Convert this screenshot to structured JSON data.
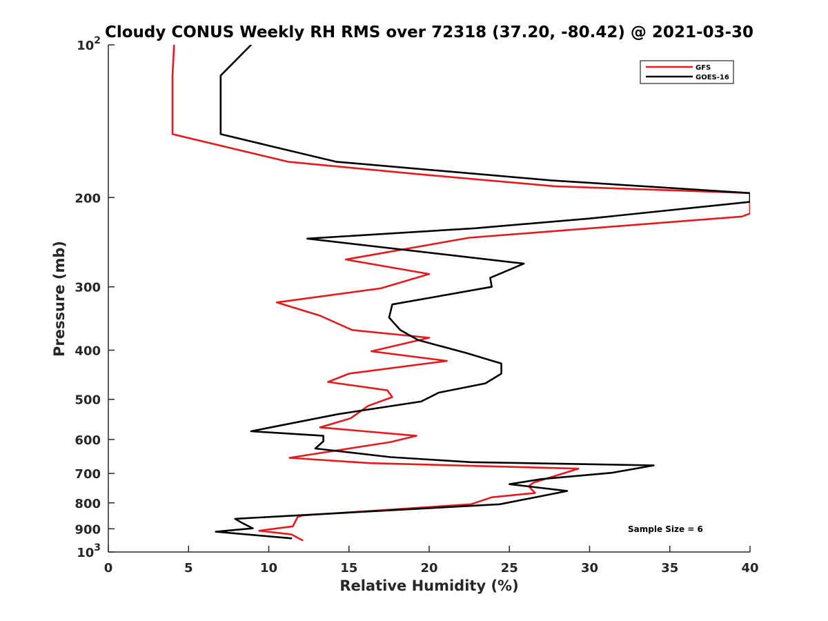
{
  "chart_data": {
    "type": "line",
    "title": "Cloudy CONUS Weekly RH RMS over 72318 (37.20, -80.42) @ 2021-03-30",
    "xlabel": "Relative Humidity (%)",
    "ylabel": "Pressure (mb)",
    "xlim": [
      0,
      40
    ],
    "ylim": [
      100,
      1000
    ],
    "yscale": "log",
    "yreversed": true,
    "grid": false,
    "legend_position": "top-right",
    "xticks": [
      0,
      5,
      10,
      15,
      20,
      25,
      30,
      35,
      40
    ],
    "xtick_labels": [
      "0",
      "5",
      "10",
      "15",
      "20",
      "25",
      "30",
      "35",
      "40"
    ],
    "yticks": [
      100,
      200,
      300,
      400,
      500,
      600,
      700,
      800,
      900,
      1000
    ],
    "ytick_labels": [
      {
        "base": "10",
        "exp": "2"
      },
      {
        "base": "200",
        "exp": ""
      },
      {
        "base": "300",
        "exp": ""
      },
      {
        "base": "400",
        "exp": ""
      },
      {
        "base": "500",
        "exp": ""
      },
      {
        "base": "600",
        "exp": ""
      },
      {
        "base": "700",
        "exp": ""
      },
      {
        "base": "800",
        "exp": ""
      },
      {
        "base": "900",
        "exp": ""
      },
      {
        "base": "10",
        "exp": "3"
      }
    ],
    "annotation": "Sample Size = 6",
    "series": [
      {
        "name": "GFS",
        "color": "#e41a1c",
        "points": [
          [
            4.1,
            100
          ],
          [
            4.0,
            115
          ],
          [
            4.0,
            125
          ],
          [
            4.0,
            150
          ],
          [
            11.2,
            170
          ],
          [
            19.4,
            180
          ],
          [
            27.8,
            190
          ],
          [
            40.0,
            196
          ],
          [
            40.0,
            215
          ],
          [
            39.5,
            218
          ],
          [
            22.5,
            240
          ],
          [
            14.8,
            265
          ],
          [
            20.0,
            283
          ],
          [
            17.0,
            302
          ],
          [
            10.5,
            322
          ],
          [
            13.2,
            342
          ],
          [
            15.2,
            365
          ],
          [
            20.0,
            378
          ],
          [
            16.4,
            402
          ],
          [
            21.1,
            420
          ],
          [
            15.0,
            445
          ],
          [
            13.7,
            462
          ],
          [
            17.4,
            480
          ],
          [
            17.7,
            495
          ],
          [
            16.2,
            515
          ],
          [
            15.1,
            545
          ],
          [
            13.2,
            568
          ],
          [
            19.2,
            590
          ],
          [
            17.6,
            607
          ],
          [
            11.3,
            652
          ],
          [
            16.3,
            668
          ],
          [
            29.3,
            685
          ],
          [
            26.5,
            730
          ],
          [
            26.2,
            742
          ],
          [
            26.6,
            765
          ],
          [
            23.9,
            780
          ],
          [
            22.6,
            805
          ],
          [
            12.1,
            847
          ],
          [
            11.8,
            853
          ],
          [
            11.5,
            890
          ],
          [
            9.4,
            908
          ],
          [
            11.4,
            923
          ],
          [
            12.1,
            948
          ]
        ]
      },
      {
        "name": "GOES-16",
        "color": "#000000",
        "points": [
          [
            8.9,
            100
          ],
          [
            7.0,
            115
          ],
          [
            7.0,
            125
          ],
          [
            7.0,
            150
          ],
          [
            14.2,
            170
          ],
          [
            27.6,
            185
          ],
          [
            40.0,
            196
          ],
          [
            40.0,
            204
          ],
          [
            30.0,
            220
          ],
          [
            22.8,
            230
          ],
          [
            12.4,
            241
          ],
          [
            25.9,
            270
          ],
          [
            23.8,
            288
          ],
          [
            23.9,
            300
          ],
          [
            17.7,
            325
          ],
          [
            17.5,
            345
          ],
          [
            18.2,
            365
          ],
          [
            19.3,
            382
          ],
          [
            22.3,
            405
          ],
          [
            24.5,
            425
          ],
          [
            24.5,
            445
          ],
          [
            23.5,
            465
          ],
          [
            20.6,
            485
          ],
          [
            19.5,
            505
          ],
          [
            14.3,
            535
          ],
          [
            8.9,
            578
          ],
          [
            13.4,
            590
          ],
          [
            13.4,
            605
          ],
          [
            12.9,
            625
          ],
          [
            17.6,
            650
          ],
          [
            22.6,
            665
          ],
          [
            34.0,
            675
          ],
          [
            31.4,
            698
          ],
          [
            27.0,
            718
          ],
          [
            25.0,
            735
          ],
          [
            28.6,
            758
          ],
          [
            24.4,
            805
          ],
          [
            7.9,
            860
          ],
          [
            8.3,
            875
          ],
          [
            9.0,
            898
          ],
          [
            6.7,
            912
          ],
          [
            11.4,
            940
          ]
        ]
      }
    ]
  }
}
